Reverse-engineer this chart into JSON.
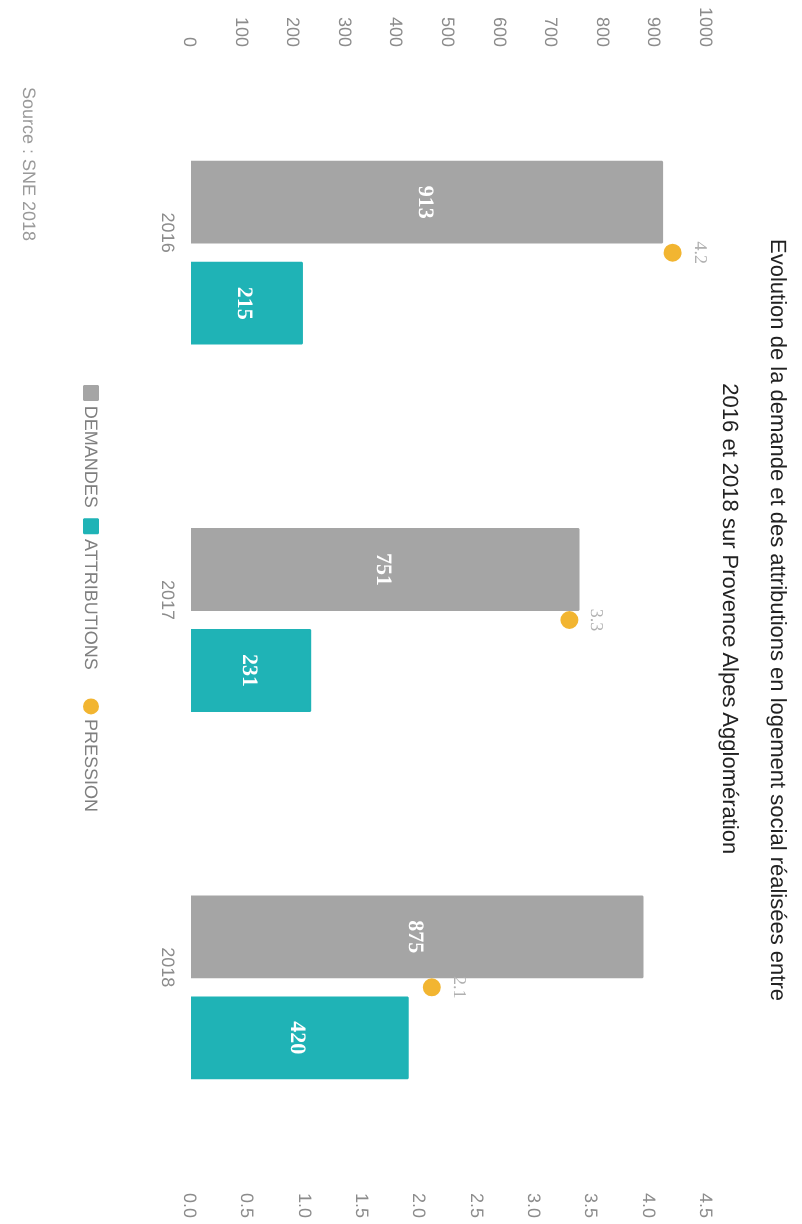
{
  "chart_data": {
    "type": "bar",
    "orientation": "horizontal",
    "title": "Evolution de la demande et des attributions en logement social réalisées entre",
    "subtitle": "2016 et 2018 sur Provence Alpes Agglomération",
    "categories": [
      "2016",
      "2017",
      "2018"
    ],
    "series": [
      {
        "name": "DEMANDES",
        "color": "#a5a5a5",
        "values": [
          913,
          751,
          875
        ]
      },
      {
        "name": "ATTRIBUTIONS",
        "color": "#1fb3b6",
        "values": [
          215,
          231,
          420
        ]
      },
      {
        "name": "PRESSION",
        "type": "scatter",
        "axis": "x2",
        "color": "#f2b531",
        "values": [
          4.2,
          3.3,
          2.1
        ]
      }
    ],
    "xlim": [
      0,
      1000
    ],
    "xticks": [
      0,
      100,
      200,
      300,
      400,
      500,
      600,
      700,
      800,
      900,
      1000
    ],
    "x2lim": [
      0,
      4.5
    ],
    "x2ticks": [
      {
        "value": 0,
        "label": "0.0"
      },
      {
        "value": 0.5,
        "label": "0.5"
      },
      {
        "value": 1,
        "label": "1.0"
      },
      {
        "value": 1.5,
        "label": "1.5"
      },
      {
        "value": 2,
        "label": "2.0"
      },
      {
        "value": 2.5,
        "label": "2.5"
      },
      {
        "value": 3,
        "label": "3.0"
      },
      {
        "value": 3.5,
        "label": "3.5"
      },
      {
        "value": 4,
        "label": "4.0"
      },
      {
        "value": 4.5,
        "label": "4.5"
      }
    ],
    "data_labels": true,
    "marker": "circle",
    "legend": "left",
    "annotations": [
      "Source : SNE 2018"
    ]
  }
}
